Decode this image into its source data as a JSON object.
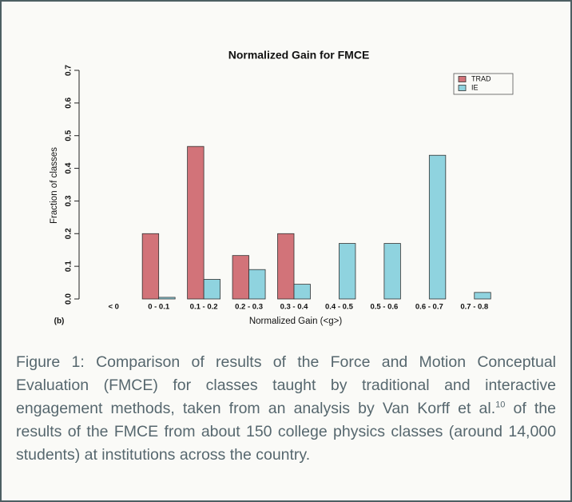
{
  "chart_data": {
    "type": "bar",
    "title": "Normalized Gain for FMCE",
    "x_label": "Normalized Gain (<g>)",
    "y_label": "Fraction of classes",
    "panel_label": "(b)",
    "categories": [
      "< 0",
      "0 - 0.1",
      "0.1 - 0.2",
      "0.2 - 0.3",
      "0.3 - 0.4",
      "0.4 - 0.5",
      "0.5 - 0.6",
      "0.6 - 0.7",
      "0.7 - 0.8"
    ],
    "series": [
      {
        "name": "TRAD",
        "color": "#d27379",
        "values": [
          0,
          0.2,
          0.467,
          0.133,
          0.2,
          0,
          0,
          0,
          0
        ]
      },
      {
        "name": "IE",
        "color": "#8fd3df",
        "values": [
          0,
          0.005,
          0.06,
          0.09,
          0.045,
          0.17,
          0.17,
          0.44,
          0.02
        ]
      }
    ],
    "ylim": [
      0,
      0.7
    ],
    "yticks": [
      {
        "value": 0,
        "label": "0.0"
      },
      0.1,
      0.2,
      0.3,
      0.4,
      0.5,
      0.6,
      0.7
    ],
    "legend": "upper right",
    "grid": false
  },
  "caption": {
    "before": "Figure 1: Comparison of results of the Force and Motion Conceptual Evaluation (FMCE) for classes taught by traditional and interactive engagement methods, taken from an analysis by Van Korff et al.",
    "ref": "10",
    "after": " of the results of the FMCE from about 150 college physics classes (around 14,000 students) at institutions across the country."
  }
}
